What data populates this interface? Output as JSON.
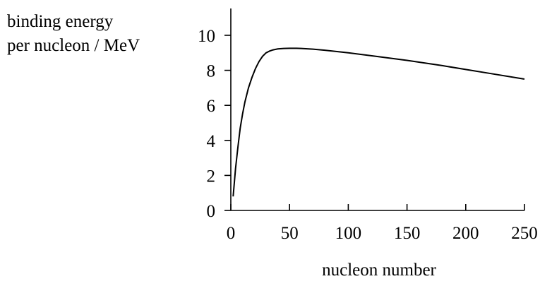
{
  "chart_data": {
    "type": "line",
    "ylabel_lines": [
      "binding energy",
      "per nucleon / MeV"
    ],
    "xlabel": "nucleon number",
    "xlim": [
      0,
      250
    ],
    "ylim": [
      0,
      11.5
    ],
    "xticks": [
      0,
      50,
      100,
      150,
      200,
      250
    ],
    "yticks": [
      0,
      2,
      4,
      6,
      8,
      10
    ],
    "grid": false,
    "series": [
      {
        "x": [
          2,
          4,
          6,
          8,
          10,
          12,
          15,
          18,
          21,
          24,
          27,
          30,
          33,
          36,
          40,
          45,
          50,
          56,
          60,
          70,
          80,
          100,
          120,
          150,
          180,
          200,
          220,
          250
        ],
        "y": [
          0.8,
          2.4,
          3.6,
          4.7,
          5.5,
          6.2,
          7.0,
          7.6,
          8.1,
          8.5,
          8.8,
          9.0,
          9.1,
          9.17,
          9.22,
          9.25,
          9.26,
          9.26,
          9.25,
          9.21,
          9.15,
          9.0,
          8.83,
          8.57,
          8.27,
          8.05,
          7.83,
          7.5
        ]
      }
    ]
  }
}
